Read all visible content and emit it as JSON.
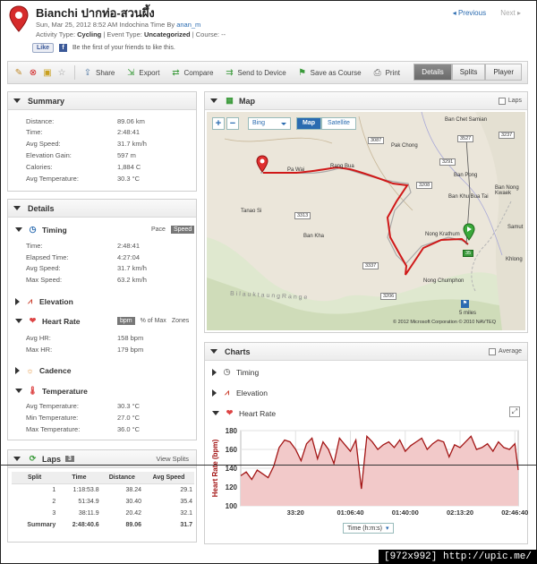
{
  "header": {
    "title": "Bianchi ปากท่อ-สวนผึ้ง",
    "date_prefix": "Sun, Mar 25, 2012 8:52 AM Indochina Time By",
    "user": "anan_m",
    "activity_type_label": "Activity Type:",
    "activity_type": "Cycling",
    "event_type_label": "| Event Type:",
    "event_type": "Uncategorized",
    "course_label": "| Course: --",
    "prev": "Previous",
    "next": "Next",
    "like_button": "Like",
    "like_text": "Be the first of your friends to like this."
  },
  "toolbar": {
    "share": "Share",
    "export": "Export",
    "compare": "Compare",
    "send": "Send to Device",
    "save_course": "Save as Course",
    "print": "Print",
    "tabs": [
      "Details",
      "Splits",
      "Player"
    ]
  },
  "summary": {
    "title": "Summary",
    "rows": [
      {
        "label": "Distance:",
        "value": "89.06 km"
      },
      {
        "label": "Time:",
        "value": "2:48:41"
      },
      {
        "label": "Avg Speed:",
        "value": "31.7 km/h"
      },
      {
        "label": "Elevation Gain:",
        "value": "597 m"
      },
      {
        "label": "Calories:",
        "value": "1,884 C"
      },
      {
        "label": "Avg Temperature:",
        "value": "30.3 °C"
      }
    ]
  },
  "details": {
    "title": "Details",
    "timing": {
      "title": "Timing",
      "pace": "Pace",
      "speed": "Speed",
      "rows": [
        {
          "label": "Time:",
          "value": "2:48:41"
        },
        {
          "label": "Elapsed Time:",
          "value": "4:27:04"
        },
        {
          "label": "Avg Speed:",
          "value": "31.7 km/h"
        },
        {
          "label": "Max Speed:",
          "value": "63.2 km/h"
        }
      ]
    },
    "elevation": {
      "title": "Elevation"
    },
    "heart_rate": {
      "title": "Heart Rate",
      "bpm": "bpm",
      "pct_max": "% of Max",
      "zones": "Zones",
      "rows": [
        {
          "label": "Avg HR:",
          "value": "158 bpm"
        },
        {
          "label": "Max HR:",
          "value": "179 bpm"
        }
      ]
    },
    "cadence": {
      "title": "Cadence"
    },
    "temperature": {
      "title": "Temperature",
      "rows": [
        {
          "label": "Avg Temperature:",
          "value": "30.3 °C"
        },
        {
          "label": "Min Temperature:",
          "value": "27.0 °C"
        },
        {
          "label": "Max Temperature:",
          "value": "36.0 °C"
        }
      ]
    }
  },
  "laps": {
    "title": "Laps",
    "count": "3",
    "view_splits": "View Splits",
    "headers": [
      "Split",
      "Time",
      "Distance",
      "Avg Speed"
    ],
    "rows": [
      [
        "1",
        "1:18:53.8",
        "38.24",
        "29.1"
      ],
      [
        "2",
        "51:34.9",
        "30.40",
        "35.4"
      ],
      [
        "3",
        "38:11.9",
        "20.42",
        "32.1"
      ]
    ],
    "summary": [
      "Summary",
      "2:48:40.6",
      "89.06",
      "31.7"
    ]
  },
  "map": {
    "title": "Map",
    "laps_label": "Laps",
    "provider": "Bing",
    "map_btn": "Map",
    "satellite_btn": "Satellite",
    "copyright": "© 2012 Microsoft Corporation   © 2010 NAVTEQ",
    "scale": "5 miles",
    "places": [
      "Ban Chet Samian",
      "Pak Chong",
      "Rang Bua",
      "Ban Pong",
      "Ban Khu Bua Tai",
      "Ban Nong Kwaek",
      "Tanao Si",
      "Ban Kha",
      "Nong Krathum",
      "Samut",
      "Khlong",
      "Nong Chumphon",
      "Pa Wai"
    ],
    "roads": [
      "3087",
      "3527",
      "3237",
      "3291",
      "3208",
      "3313",
      "3337",
      "3206",
      "35"
    ],
    "range_text": "B i l a u k t a u n g   R a n g e"
  },
  "charts": {
    "title": "Charts",
    "average_label": "Average",
    "timing": "Timing",
    "elevation": "Elevation",
    "heart_rate": "Heart Rate",
    "x_axis_select": "Time (h:m:s)"
  },
  "chart_data": {
    "type": "area",
    "title": "",
    "xlabel": "Time (h:m:s)",
    "ylabel": "Heart Rate (bpm)",
    "ylim": [
      100,
      180
    ],
    "yticks": [
      100,
      120,
      140,
      160,
      180
    ],
    "xticks": [
      "33:20",
      "01:06:40",
      "01:40:00",
      "02:13:20",
      "02:46:40"
    ],
    "xtick_seconds": [
      2000,
      4000,
      6000,
      8000,
      10000
    ],
    "xlim": [
      0,
      10121
    ],
    "color": "#a31515",
    "fill": "#f2c9c9",
    "x": [
      0,
      200,
      400,
      600,
      800,
      1000,
      1200,
      1400,
      1600,
      1800,
      2000,
      2200,
      2400,
      2600,
      2800,
      3000,
      3200,
      3400,
      3600,
      3800,
      4000,
      4200,
      4400,
      4600,
      4800,
      5000,
      5200,
      5400,
      5600,
      5800,
      6000,
      6200,
      6400,
      6600,
      6800,
      7000,
      7200,
      7400,
      7600,
      7800,
      8000,
      8200,
      8400,
      8600,
      8800,
      9000,
      9200,
      9400,
      9600,
      9800,
      10000,
      10121
    ],
    "y": [
      132,
      136,
      128,
      138,
      134,
      130,
      142,
      162,
      170,
      168,
      160,
      148,
      166,
      172,
      150,
      168,
      160,
      145,
      172,
      165,
      158,
      170,
      118,
      174,
      168,
      160,
      165,
      168,
      162,
      170,
      158,
      164,
      168,
      172,
      160,
      166,
      170,
      168,
      152,
      165,
      162,
      168,
      174,
      160,
      162,
      166,
      158,
      168,
      162,
      160,
      166,
      138
    ]
  },
  "watermark": "[972x992] http://upic.me/"
}
